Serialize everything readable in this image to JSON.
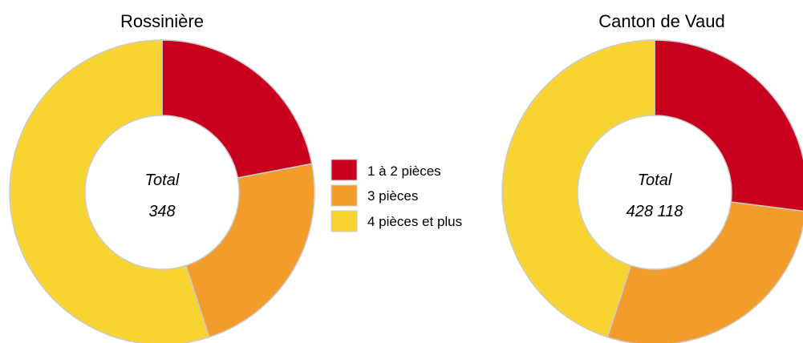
{
  "colors": {
    "one_two_rooms": "#c8001e",
    "three_rooms": "#f29c2c",
    "four_plus_rooms": "#f8d432",
    "separator": "#cccccc"
  },
  "legend": [
    {
      "label": "1 à 2 pièces",
      "color": "#c8001e"
    },
    {
      "label": "3 pièces",
      "color": "#f29c2c"
    },
    {
      "label": "4 pièces et plus",
      "color": "#f8d432"
    }
  ],
  "chart_data": [
    {
      "type": "pie",
      "variant": "donut",
      "title": "Rossinière",
      "center_label": "Total",
      "center_value": "348",
      "categories": [
        "1 à 2 pièces",
        "3 pièces",
        "4 pièces et plus"
      ],
      "values": [
        0.22,
        0.23,
        0.55
      ],
      "start_angle_deg": 0,
      "direction": "clockwise"
    },
    {
      "type": "pie",
      "variant": "donut",
      "title": "Canton de Vaud",
      "center_label": "Total",
      "center_value": "428 118",
      "categories": [
        "1 à 2 pièces",
        "3 pièces",
        "4 pièces et plus"
      ],
      "values": [
        0.27,
        0.28,
        0.45
      ],
      "start_angle_deg": 0,
      "direction": "clockwise"
    }
  ]
}
